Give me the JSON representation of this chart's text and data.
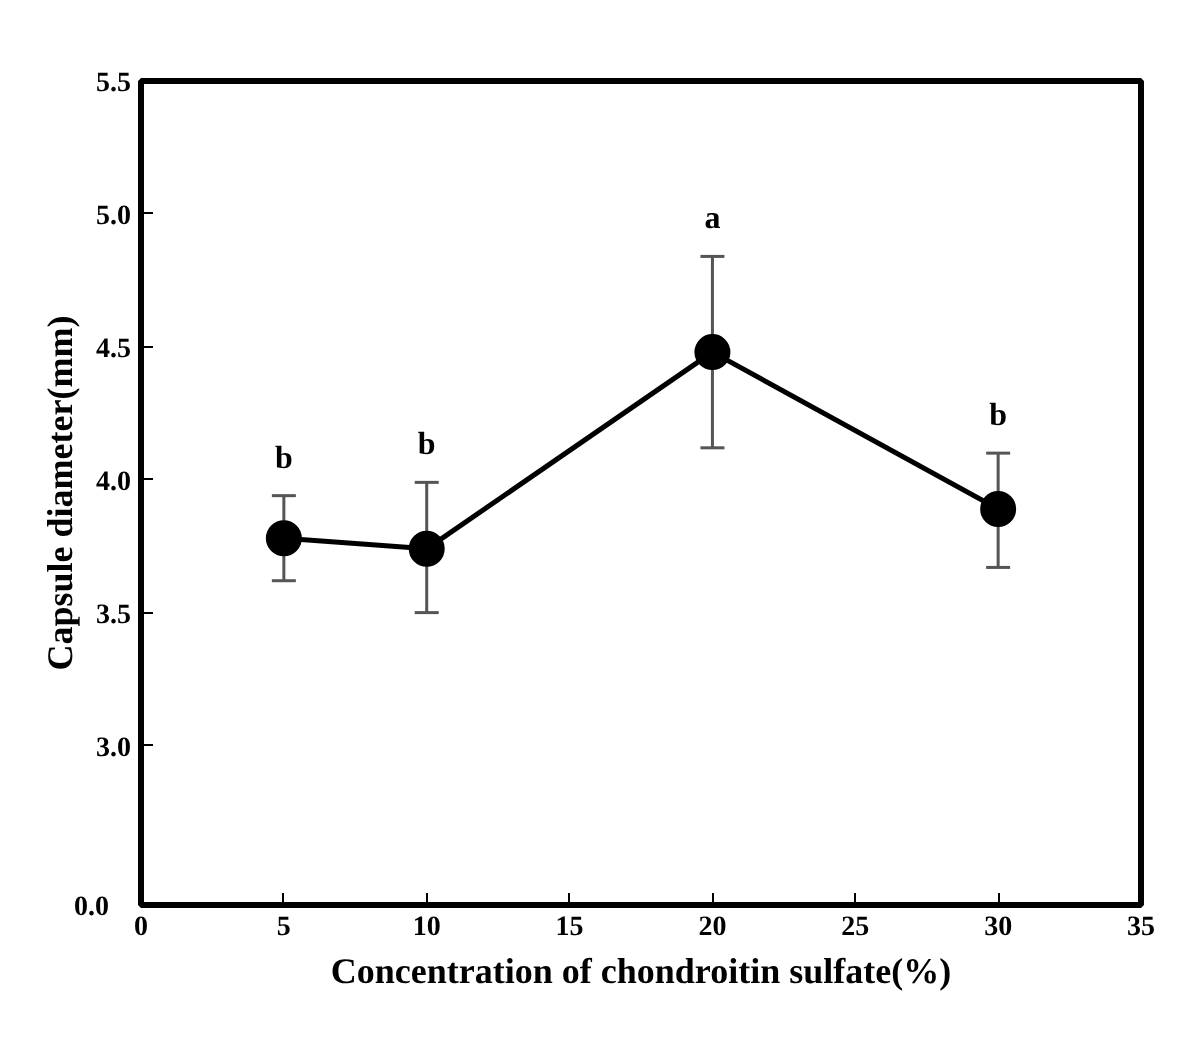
{
  "chart_data": {
    "type": "line",
    "xlabel": "Concentration of chondroitin sulfate(%)",
    "ylabel": "Capsule diameter(mm)",
    "x": [
      5,
      10,
      20,
      30
    ],
    "series": [
      {
        "color": "#000000",
        "values": [
          3.78,
          3.74,
          4.48,
          3.89
        ],
        "errors": [
          [
            3.62,
            3.94
          ],
          [
            3.5,
            3.99
          ],
          [
            4.12,
            4.84
          ],
          [
            3.67,
            4.1
          ]
        ]
      }
    ],
    "xlim": [
      0,
      35
    ],
    "xticks": [
      0,
      5,
      10,
      15,
      20,
      25,
      30,
      35
    ],
    "ylim": [
      2.4,
      5.5
    ],
    "yticks": [
      {
        "value": 3.0,
        "label": "3.0"
      },
      3.5,
      {
        "value": 4.0,
        "label": "4.0"
      },
      4.5,
      {
        "value": 5.0,
        "label": "5.0"
      },
      5.5
    ],
    "marker": "circle",
    "line_style": "solid",
    "grid": false,
    "annotations": [
      "b",
      "b",
      "a",
      "b",
      "0.0"
    ]
  }
}
